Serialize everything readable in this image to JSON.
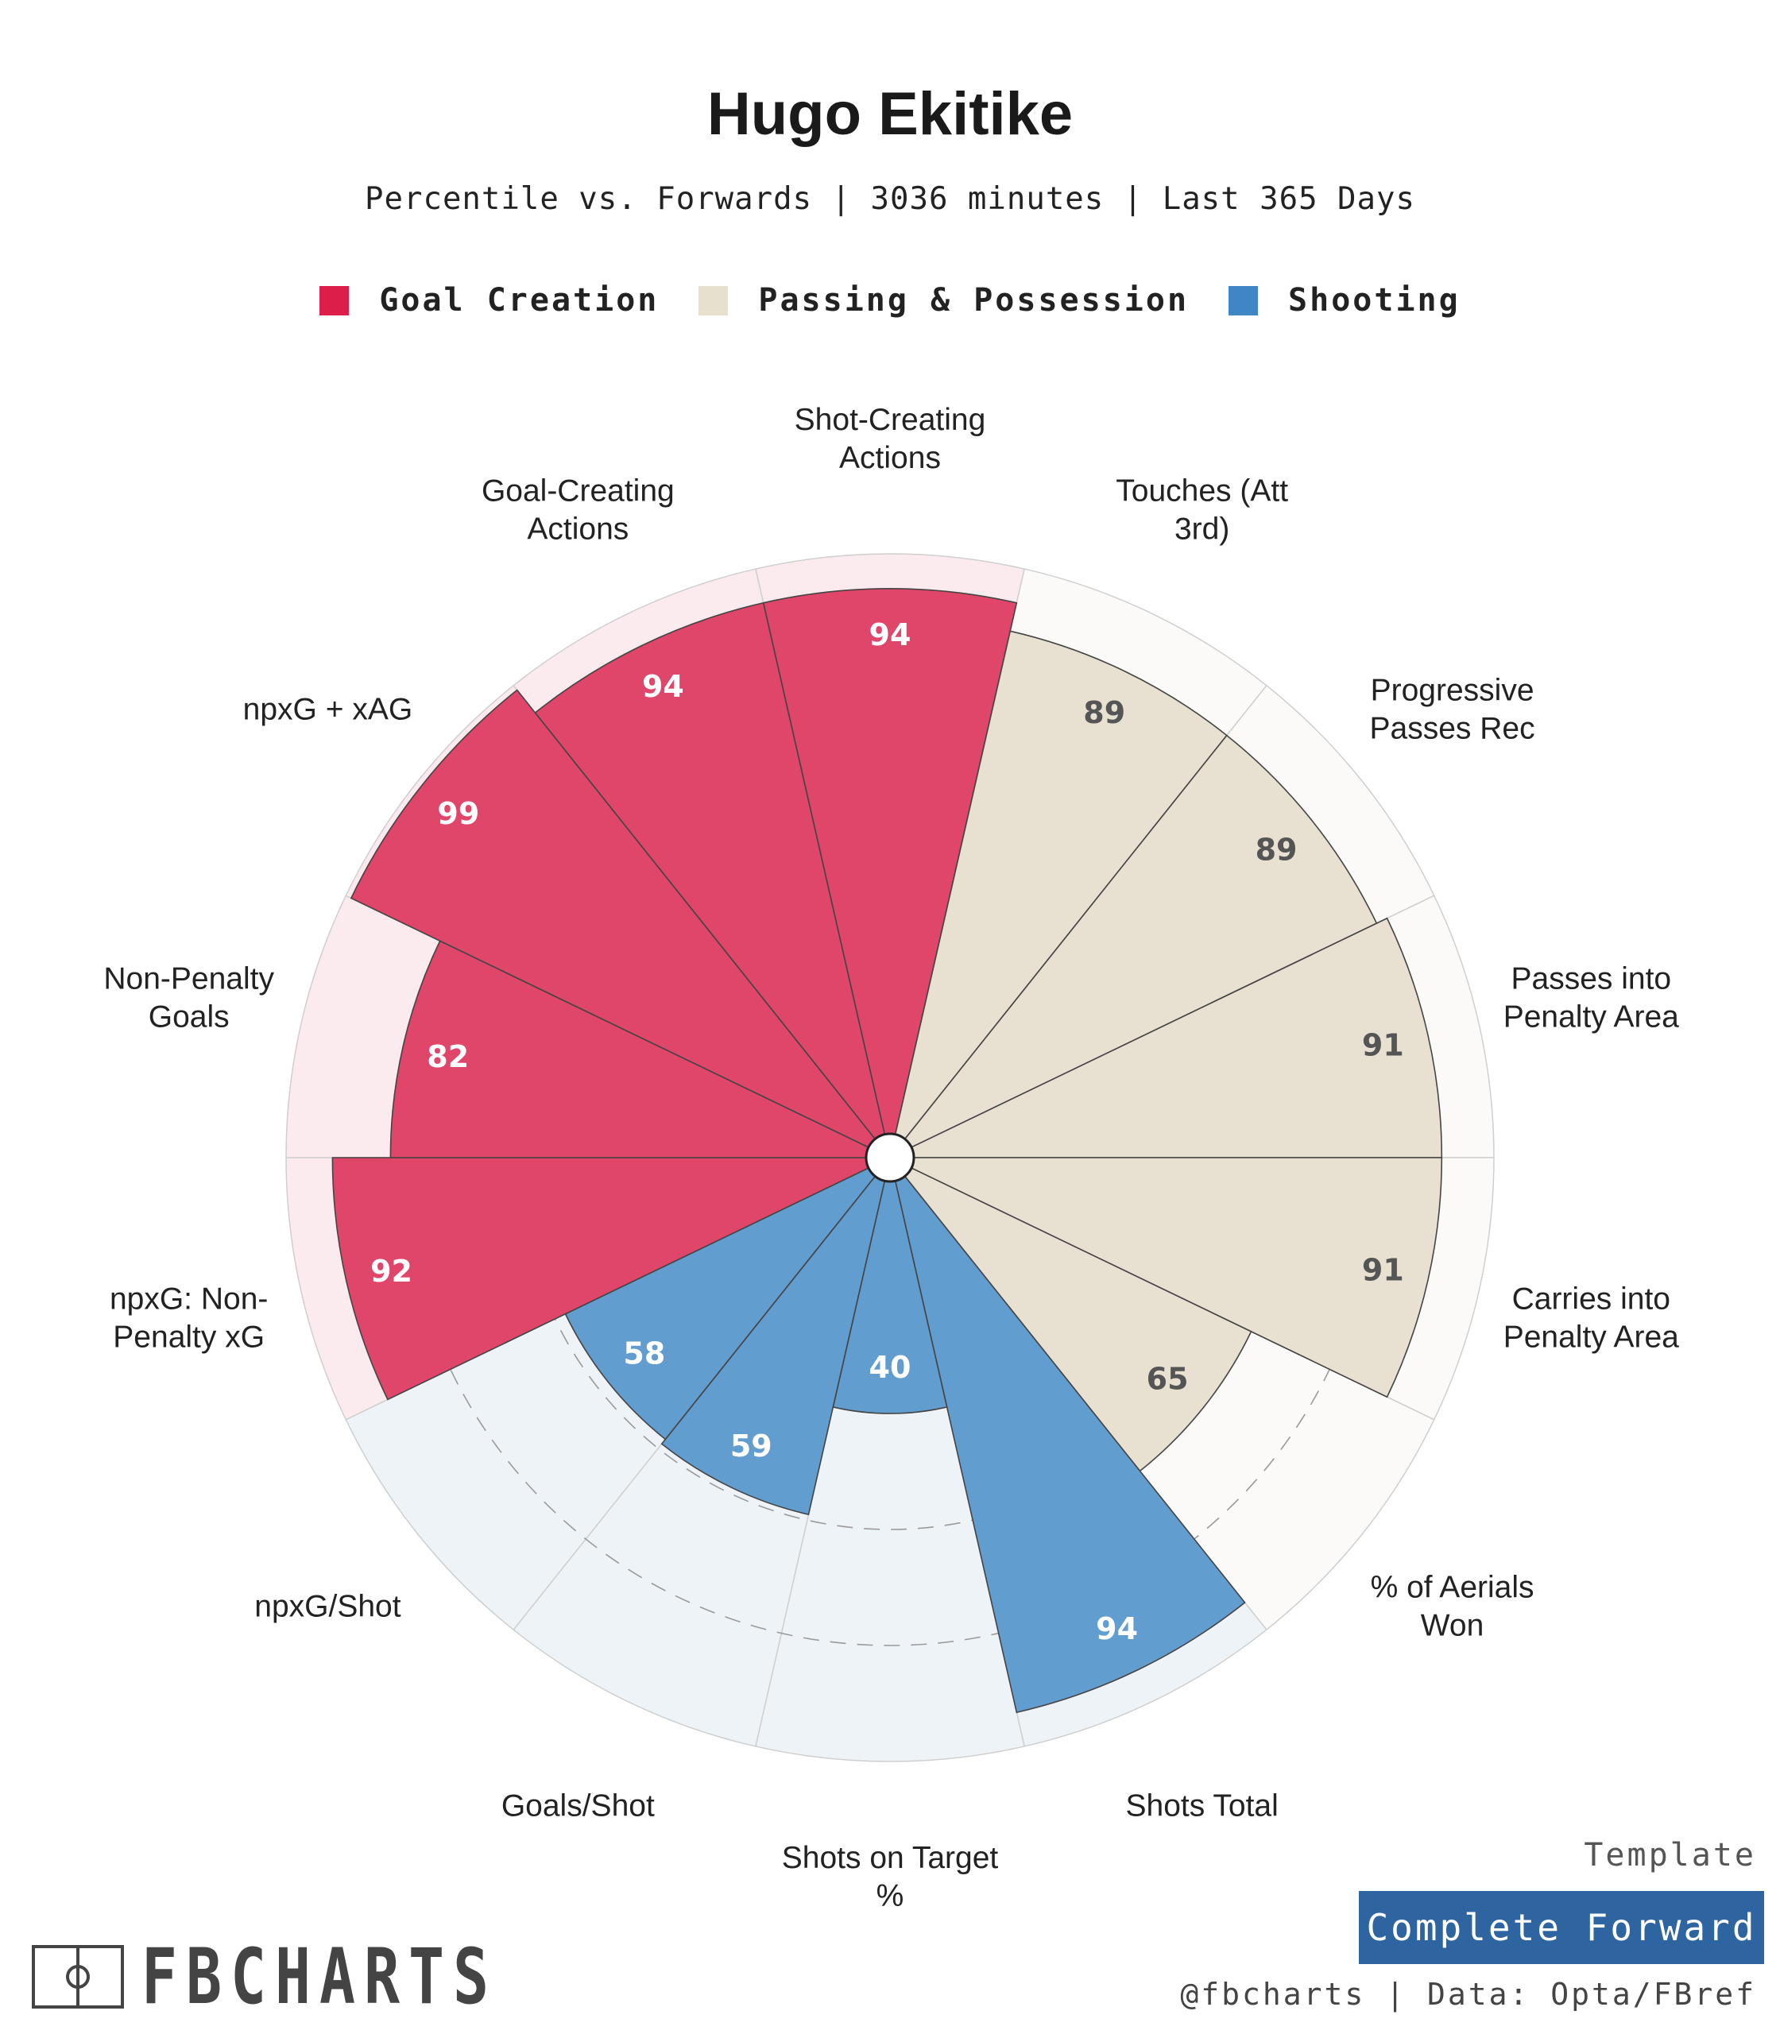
{
  "title": "Hugo Ekitike",
  "subtitle": "Percentile vs. Forwards | 3036 minutes | Last 365 Days",
  "legend": [
    {
      "label": "Goal Creation",
      "color": "#dc1e4a"
    },
    {
      "label": "Passing & Possession",
      "color": "#e8e0cf"
    },
    {
      "label": "Shooting",
      "color": "#3f86c6"
    }
  ],
  "chart_data": {
    "type": "pizza",
    "scale": [
      0,
      100
    ],
    "categories": [
      {
        "name": "Goal Creation",
        "color": "#e0456a",
        "bg": "#fbeaee",
        "text_color": "#ffffff"
      },
      {
        "name": "Passing & Possession",
        "color": "#e8e1d2",
        "bg": "#fbfaf8",
        "text_color": "#555555"
      },
      {
        "name": "Shooting",
        "color": "#629dcf",
        "bg": "#eef3f8",
        "text_color": "#ffffff"
      }
    ],
    "slices": [
      {
        "label": "Shot-Creating Actions",
        "label_lines": [
          "Shot-Creating",
          "Actions"
        ],
        "value": 94,
        "category": 0
      },
      {
        "label": "Touches (Att 3rd)",
        "label_lines": [
          "Touches (Att",
          "3rd)"
        ],
        "value": 89,
        "category": 1
      },
      {
        "label": "Progressive Passes Rec",
        "label_lines": [
          "Progressive",
          "Passes Rec"
        ],
        "value": 89,
        "category": 1
      },
      {
        "label": "Passes into Penalty Area",
        "label_lines": [
          "Passes into",
          "Penalty Area"
        ],
        "value": 91,
        "category": 1
      },
      {
        "label": "Carries into Penalty Area",
        "label_lines": [
          "Carries into",
          "Penalty Area"
        ],
        "value": 91,
        "category": 1
      },
      {
        "label": "% of Aerials Won",
        "label_lines": [
          "% of Aerials",
          "Won"
        ],
        "value": 65,
        "category": 1
      },
      {
        "label": "Shots Total",
        "label_lines": [
          "Shots Total"
        ],
        "value": 94,
        "category": 2
      },
      {
        "label": "Shots on Target %",
        "label_lines": [
          "Shots on Target",
          "%"
        ],
        "value": 40,
        "category": 2
      },
      {
        "label": "Goals/Shot",
        "label_lines": [
          "Goals/Shot"
        ],
        "value": 59,
        "category": 2
      },
      {
        "label": "npxG/Shot",
        "label_lines": [
          "npxG/Shot"
        ],
        "value": 58,
        "category": 2
      },
      {
        "label": "npxG: Non-Penalty xG",
        "label_lines": [
          "npxG: Non-",
          "Penalty xG"
        ],
        "value": 92,
        "category": 0
      },
      {
        "label": "Non-Penalty Goals",
        "label_lines": [
          "Non-Penalty",
          "Goals"
        ],
        "value": 82,
        "category": 0
      },
      {
        "label": "npxG + xAG",
        "label_lines": [
          "npxG + xAG"
        ],
        "value": 99,
        "category": 0
      },
      {
        "label": "Goal-Creating Actions",
        "label_lines": [
          "Goal-Creating",
          "Actions"
        ],
        "value": 94,
        "category": 0
      }
    ]
  },
  "footer": {
    "brand": "FBCHARTS",
    "template_label": "Template",
    "template_name": "Complete Forward",
    "credit": "@fbcharts | Data: Opta/FBref"
  }
}
